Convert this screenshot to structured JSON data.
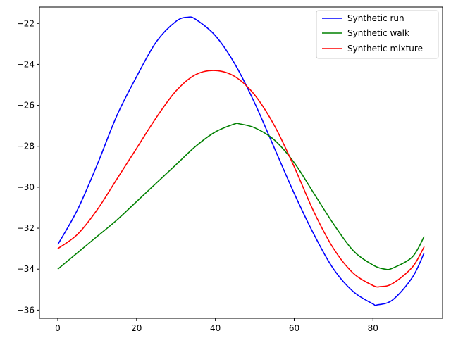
{
  "chart_data": {
    "type": "line",
    "title": "",
    "xlabel": "",
    "ylabel": "",
    "xlim": [
      -4.65,
      97.65
    ],
    "ylim": [
      -36.4,
      -21.2
    ],
    "xticks": [
      0,
      20,
      40,
      60,
      80
    ],
    "yticks": [
      -36,
      -34,
      -32,
      -30,
      -28,
      -26,
      -24,
      -22
    ],
    "xtick_labels": [
      "0",
      "20",
      "40",
      "60",
      "80"
    ],
    "ytick_labels": [
      "−36",
      "−34",
      "−32",
      "−30",
      "−28",
      "−26",
      "−24",
      "−22"
    ],
    "grid": false,
    "legend_position": "top-right",
    "series": [
      {
        "name": "Synthetic run",
        "color": "#0000ff",
        "x": [
          0,
          5,
          10,
          15,
          20,
          25,
          30,
          33,
          35,
          40,
          45,
          50,
          55,
          60,
          65,
          70,
          75,
          80,
          81,
          85,
          90,
          93
        ],
        "y": [
          -32.8,
          -31.1,
          -28.9,
          -26.5,
          -24.6,
          -22.9,
          -21.9,
          -21.7,
          -21.8,
          -22.6,
          -24.0,
          -25.9,
          -28.1,
          -30.3,
          -32.3,
          -34.0,
          -35.1,
          -35.7,
          -35.75,
          -35.5,
          -34.4,
          -33.2
        ]
      },
      {
        "name": "Synthetic walk",
        "color": "#008000",
        "x": [
          0,
          5,
          10,
          15,
          20,
          25,
          30,
          35,
          40,
          45,
          46,
          50,
          55,
          60,
          65,
          70,
          75,
          80,
          83,
          85,
          90,
          93
        ],
        "y": [
          -34.0,
          -33.2,
          -32.4,
          -31.6,
          -30.7,
          -29.8,
          -28.9,
          -28.0,
          -27.3,
          -26.9,
          -26.9,
          -27.1,
          -27.7,
          -28.8,
          -30.3,
          -31.8,
          -33.1,
          -33.8,
          -34.0,
          -33.95,
          -33.4,
          -32.4
        ]
      },
      {
        "name": "Synthetic mixture",
        "color": "#ff0000",
        "x": [
          0,
          5,
          10,
          15,
          20,
          25,
          30,
          35,
          40,
          45,
          50,
          55,
          60,
          65,
          70,
          75,
          80,
          82,
          85,
          90,
          93
        ],
        "y": [
          -33.0,
          -32.3,
          -31.1,
          -29.6,
          -28.1,
          -26.6,
          -25.3,
          -24.5,
          -24.3,
          -24.6,
          -25.5,
          -27.0,
          -29.0,
          -31.2,
          -33.0,
          -34.2,
          -34.8,
          -34.85,
          -34.7,
          -33.9,
          -32.9
        ]
      }
    ]
  }
}
